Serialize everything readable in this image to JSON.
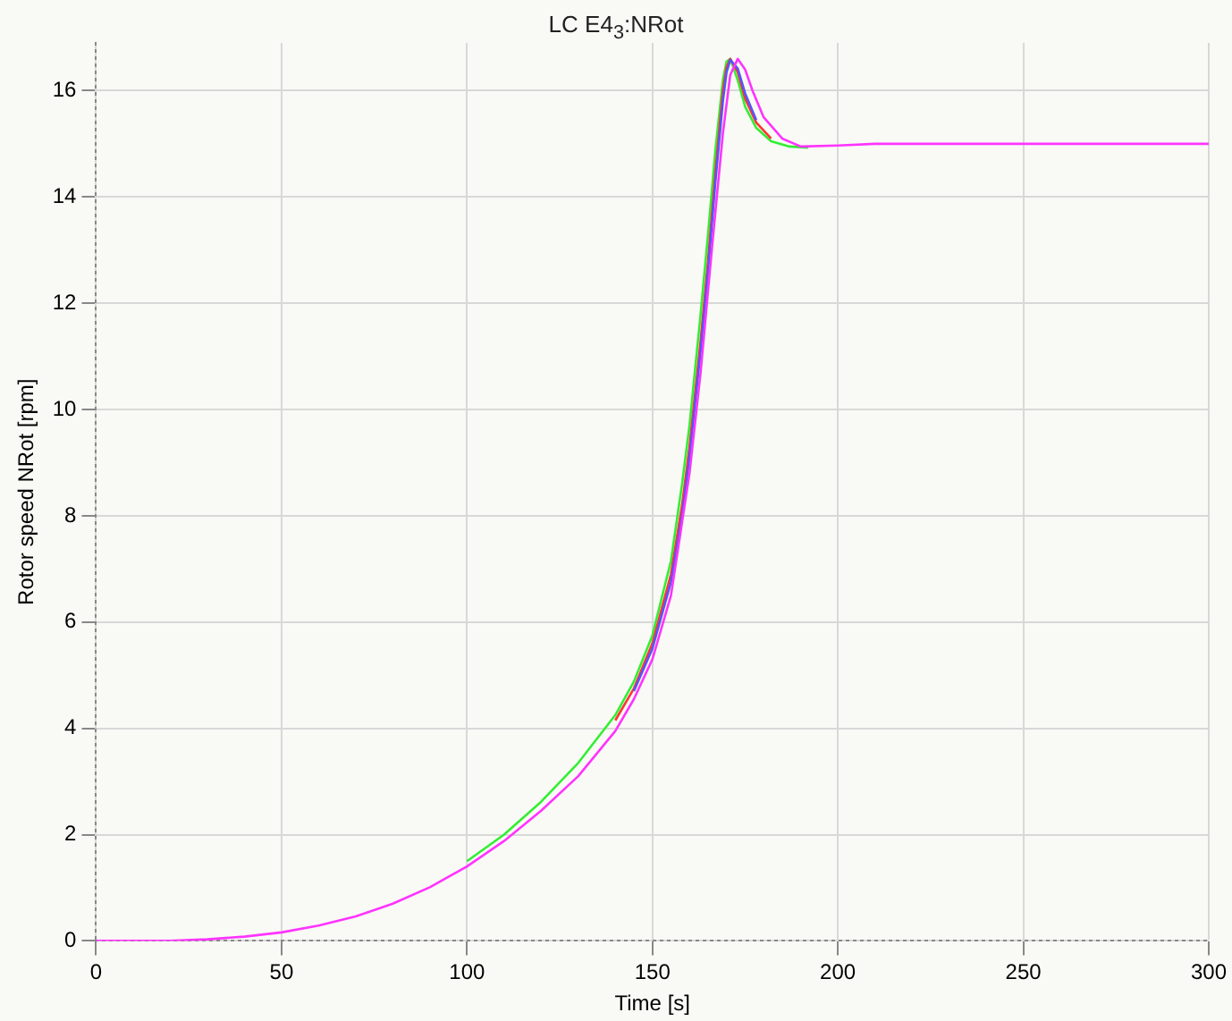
{
  "chart_data": {
    "type": "line",
    "title": "LC E4$_{3}$:NRot",
    "xlabel": "Time [s]",
    "ylabel": "Rotor speed NRot [rpm]",
    "xlim": [
      0,
      300
    ],
    "xticks": [
      0,
      50,
      100,
      150,
      200,
      250,
      300
    ],
    "ylim": [
      0,
      16.9
    ],
    "yticks": [
      0,
      2,
      4,
      6,
      8,
      10,
      12,
      14,
      16
    ],
    "grid": true,
    "marker": "none",
    "series": [
      {
        "color": "#33ee33",
        "x": [
          100,
          110,
          120,
          130,
          140,
          145,
          150,
          155,
          158,
          160,
          163,
          165,
          167,
          169,
          170,
          171,
          173,
          175,
          178,
          182,
          187,
          192
        ],
        "values": [
          1.5,
          2.0,
          2.62,
          3.35,
          4.25,
          4.88,
          5.75,
          7.15,
          8.6,
          9.7,
          11.8,
          13.3,
          14.9,
          16.2,
          16.55,
          16.6,
          16.2,
          15.7,
          15.3,
          15.05,
          14.95,
          14.93
        ]
      },
      {
        "color": "#ff3333",
        "x": [
          140,
          145,
          150,
          155,
          158,
          160,
          163,
          165,
          167,
          169,
          170,
          171,
          173,
          175,
          178,
          182
        ],
        "values": [
          4.15,
          4.75,
          5.6,
          6.9,
          8.2,
          9.3,
          11.3,
          12.8,
          14.5,
          16.0,
          16.45,
          16.6,
          16.35,
          15.85,
          15.4,
          15.1
        ]
      },
      {
        "color": "#5555ff",
        "x": [
          145,
          150,
          155,
          158,
          160,
          163,
          165,
          167,
          169,
          170,
          171,
          173,
          175,
          178
        ],
        "values": [
          4.7,
          5.5,
          6.75,
          8.0,
          9.1,
          11.1,
          12.6,
          14.3,
          15.8,
          16.35,
          16.58,
          16.42,
          15.95,
          15.45
        ]
      },
      {
        "color": "#ff33ff",
        "x": [
          0,
          20,
          30,
          40,
          50,
          60,
          70,
          80,
          90,
          100,
          110,
          120,
          130,
          140,
          145,
          150,
          155,
          160,
          163,
          166,
          169,
          171,
          173,
          175,
          177,
          180,
          185,
          190,
          200,
          210,
          300
        ],
        "values": [
          0,
          0,
          0.03,
          0.08,
          0.16,
          0.29,
          0.46,
          0.7,
          1.01,
          1.4,
          1.88,
          2.45,
          3.1,
          3.95,
          4.55,
          5.3,
          6.5,
          8.8,
          10.7,
          13.0,
          15.2,
          16.3,
          16.6,
          16.4,
          16.0,
          15.5,
          15.1,
          14.95,
          14.97,
          15,
          15
        ]
      }
    ]
  }
}
